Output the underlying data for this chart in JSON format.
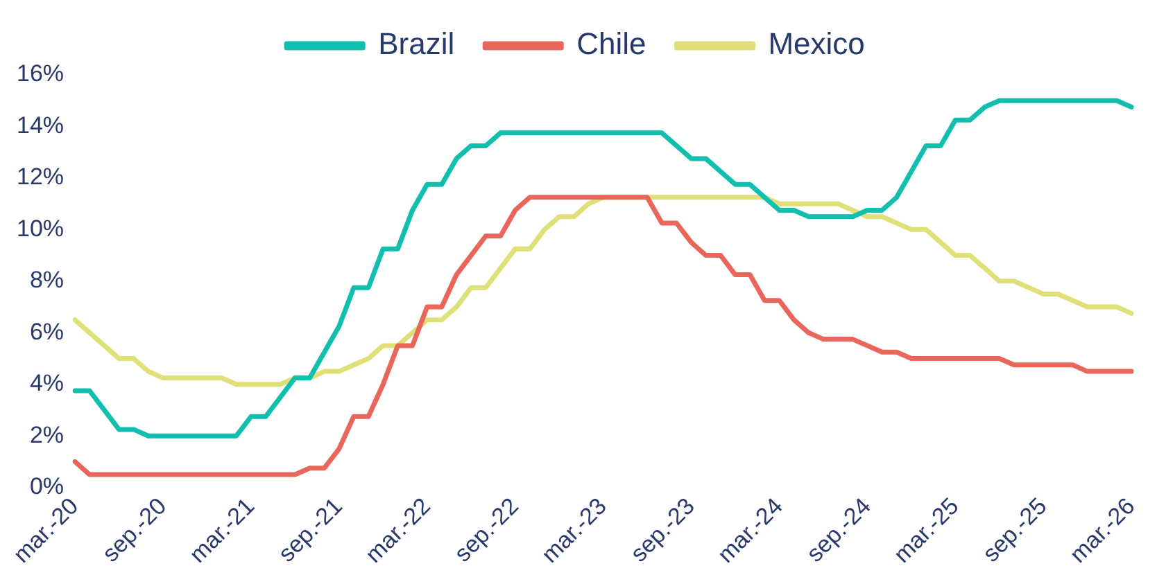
{
  "chart_data": {
    "type": "line",
    "categories": [
      "mar.-20",
      null,
      null,
      null,
      null,
      null,
      "sep.-20",
      null,
      null,
      null,
      null,
      null,
      "mar.-21",
      null,
      null,
      null,
      null,
      null,
      "sep.-21",
      null,
      null,
      null,
      null,
      null,
      "mar.-22",
      null,
      null,
      null,
      null,
      null,
      "sep.-22",
      null,
      null,
      null,
      null,
      null,
      "mar.-23",
      null,
      null,
      null,
      null,
      null,
      "sep.-23",
      null,
      null,
      null,
      null,
      null,
      "mar.-24",
      null,
      null,
      null,
      null,
      null,
      "sep.-24",
      null,
      null,
      null,
      null,
      null,
      "mar.-25",
      null,
      null,
      null,
      null,
      null,
      "sep.-25",
      null,
      null,
      null,
      null,
      null,
      "mar.-26"
    ],
    "series": [
      {
        "name": "Brazil",
        "color": "#12bfae",
        "values": [
          3.75,
          3.75,
          3.0,
          2.25,
          2.25,
          2.0,
          2.0,
          2.0,
          2.0,
          2.0,
          2.0,
          2.0,
          2.75,
          2.75,
          3.5,
          4.25,
          4.25,
          5.25,
          6.25,
          7.75,
          7.75,
          9.25,
          9.25,
          10.75,
          11.75,
          11.75,
          12.75,
          13.25,
          13.25,
          13.75,
          13.75,
          13.75,
          13.75,
          13.75,
          13.75,
          13.75,
          13.75,
          13.75,
          13.75,
          13.75,
          13.75,
          13.25,
          12.75,
          12.75,
          12.25,
          11.75,
          11.75,
          11.25,
          10.75,
          10.75,
          10.5,
          10.5,
          10.5,
          10.5,
          10.75,
          10.75,
          11.25,
          12.25,
          13.25,
          13.25,
          14.25,
          14.25,
          14.75,
          15,
          15,
          15,
          15,
          15,
          15,
          15,
          15,
          15,
          14.75
        ]
      },
      {
        "name": "Chile",
        "color": "#e8665a",
        "values": [
          1.0,
          0.5,
          0.5,
          0.5,
          0.5,
          0.5,
          0.5,
          0.5,
          0.5,
          0.5,
          0.5,
          0.5,
          0.5,
          0.5,
          0.5,
          0.5,
          0.75,
          0.75,
          1.5,
          2.75,
          2.75,
          4.0,
          5.5,
          5.5,
          7.0,
          7.0,
          8.25,
          9.0,
          9.75,
          9.75,
          10.75,
          11.25,
          11.25,
          11.25,
          11.25,
          11.25,
          11.25,
          11.25,
          11.25,
          11.25,
          10.25,
          10.25,
          9.5,
          9.0,
          9.0,
          8.25,
          8.25,
          7.25,
          7.25,
          6.5,
          6.0,
          5.75,
          5.75,
          5.75,
          5.5,
          5.25,
          5.25,
          5.0,
          5.0,
          5.0,
          5.0,
          5.0,
          5.0,
          5.0,
          4.75,
          4.75,
          4.75,
          4.75,
          4.75,
          4.5,
          4.5,
          4.5,
          4.5
        ]
      },
      {
        "name": "Mexico",
        "color": "#dfe078",
        "values": [
          6.5,
          6.0,
          5.5,
          5.0,
          5.0,
          4.5,
          4.25,
          4.25,
          4.25,
          4.25,
          4.25,
          4.0,
          4.0,
          4.0,
          4.0,
          4.25,
          4.25,
          4.5,
          4.5,
          4.75,
          5.0,
          5.5,
          5.5,
          6.0,
          6.5,
          6.5,
          7.0,
          7.75,
          7.75,
          8.5,
          9.25,
          9.25,
          10.0,
          10.5,
          10.5,
          11.0,
          11.25,
          11.25,
          11.25,
          11.25,
          11.25,
          11.25,
          11.25,
          11.25,
          11.25,
          11.25,
          11.25,
          11.25,
          11.0,
          11.0,
          11.0,
          11.0,
          11.0,
          10.75,
          10.5,
          10.5,
          10.25,
          10.0,
          10.0,
          9.5,
          9.0,
          9.0,
          8.5,
          8.0,
          8.0,
          7.75,
          7.5,
          7.5,
          7.25,
          7.0,
          7.0,
          7.0,
          6.75
        ]
      }
    ],
    "ylim": [
      0,
      16
    ],
    "yticks": [
      {
        "value": 0,
        "label": "0%"
      },
      {
        "value": 2,
        "label": "2%"
      },
      {
        "value": 4,
        "label": "4%"
      },
      {
        "value": 6,
        "label": "6%"
      },
      {
        "value": 8,
        "label": "8%"
      },
      {
        "value": 10,
        "label": "10%"
      },
      {
        "value": 12,
        "label": "12%"
      },
      {
        "value": 14,
        "label": "14%"
      },
      {
        "value": 16,
        "label": "16%"
      }
    ],
    "grid": false,
    "legend": "top",
    "marker": "none",
    "line_style": "solid"
  }
}
